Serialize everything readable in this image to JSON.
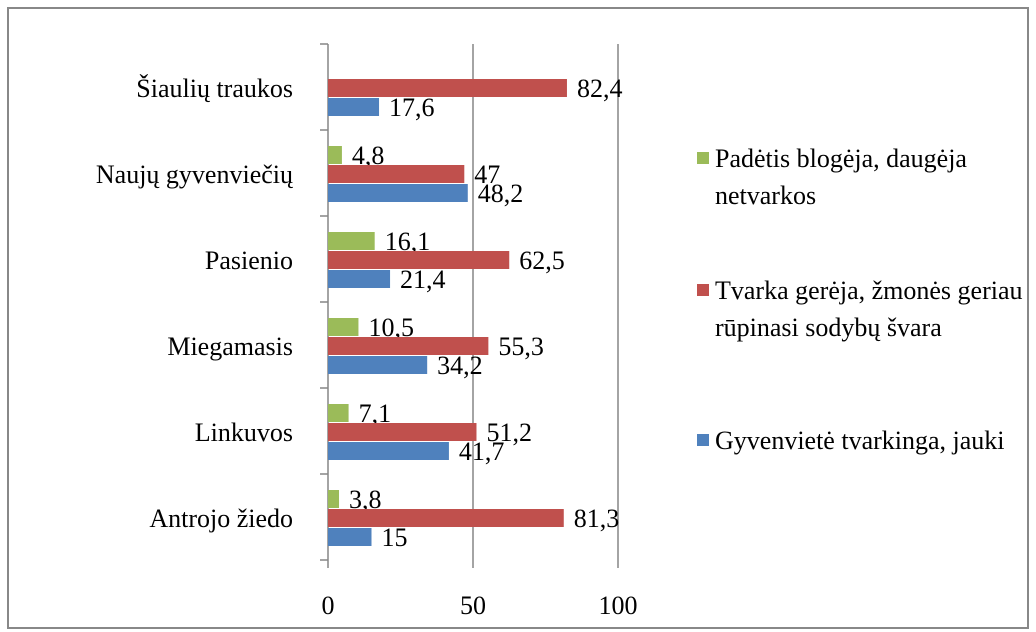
{
  "chart_data": {
    "type": "bar",
    "orientation": "horizontal",
    "categories": [
      "Šiaulių traukos",
      "Naujų gyvenviečių",
      "Pasienio",
      "Miegamasis",
      "Linkuvos",
      "Antrojo žiedo"
    ],
    "series": [
      {
        "name": "Padėtis blogėja, daugėja netvarkos",
        "color": "#9bbb59",
        "values": [
          null,
          4.8,
          16.1,
          10.5,
          7.1,
          3.8
        ],
        "value_labels": [
          null,
          "4,8",
          "16,1",
          "10,5",
          "7,1",
          "3,8"
        ]
      },
      {
        "name": "Tvarka gerėja, žmonės geriau rūpinasi sodybų švara",
        "color": "#c0504d",
        "values": [
          82.4,
          47,
          62.5,
          55.3,
          51.2,
          81.3
        ],
        "value_labels": [
          "82,4",
          "47",
          "62,5",
          "55,3",
          "51,2",
          "81,3"
        ]
      },
      {
        "name": "Gyvenvietė tvarkinga, jauki",
        "color": "#4f81bd",
        "values": [
          17.6,
          48.2,
          21.4,
          34.2,
          41.7,
          15
        ],
        "value_labels": [
          "17,6",
          "48,2",
          "21,4",
          "34,2",
          "41,7",
          "15"
        ]
      }
    ],
    "xlim": [
      0,
      100
    ],
    "xticks": [
      0,
      50,
      100
    ],
    "grid": true,
    "legend": "right"
  }
}
